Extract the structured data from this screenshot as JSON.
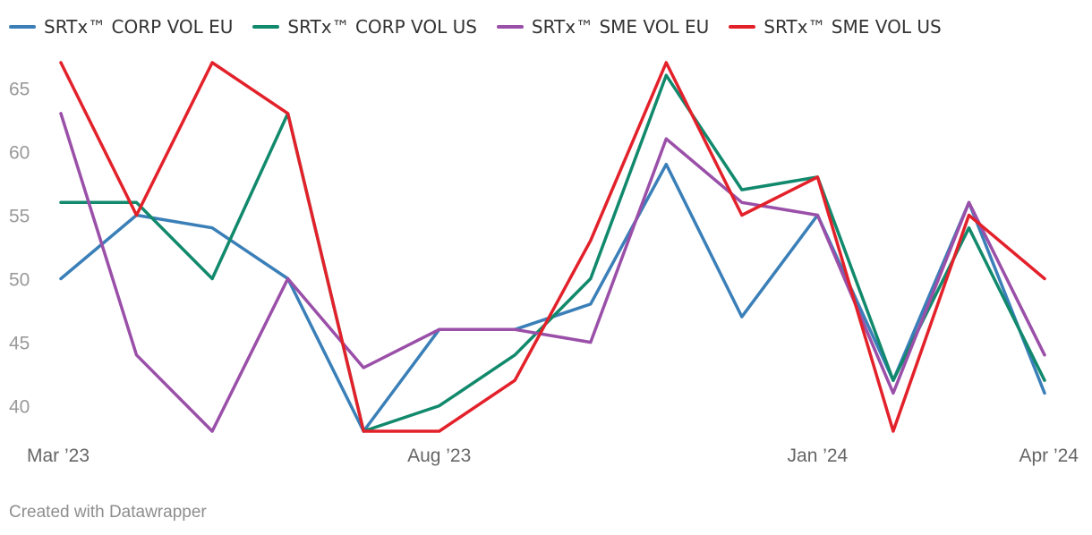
{
  "chart_data": {
    "type": "line",
    "title": "",
    "xlabel": "",
    "ylabel": "",
    "x": [
      "Mar 2023",
      "Apr 2023",
      "May 2023",
      "Jun 2023",
      "Jul 2023",
      "Aug 2023",
      "Sep 2023",
      "Oct 2023",
      "Nov 2023",
      "Dec 2023",
      "Jan 2024",
      "Feb 2024",
      "Mar 2024",
      "Apr 2024"
    ],
    "x_tick_labels": [
      {
        "at": "Mar 2023",
        "label": "Mar ’23"
      },
      {
        "at": "Aug 2023",
        "label": "Aug ’23"
      },
      {
        "at": "Jan 2024",
        "label": "Jan ’24"
      },
      {
        "at": "Apr 2024",
        "label": "Apr ’24"
      }
    ],
    "y_ticks": [
      "40",
      "45",
      "50",
      "55",
      "60",
      "65"
    ],
    "ylim": [
      38,
      67
    ],
    "grid": false,
    "legend_position": "top-left",
    "series": [
      {
        "name": "SRTx™ CORP VOL EU",
        "color": "#3a7fb8",
        "values": [
          50,
          55,
          54,
          50,
          38,
          46,
          46,
          48,
          59,
          47,
          55,
          42,
          56,
          41
        ]
      },
      {
        "name": "SRTx™ CORP VOL US",
        "color": "#11896c",
        "values": [
          56,
          56,
          50,
          63,
          38,
          40,
          44,
          50,
          66,
          57,
          58,
          42,
          54,
          42
        ]
      },
      {
        "name": "SRTx™ SME VOL EU",
        "color": "#9a4fa8",
        "values": [
          63,
          44,
          38,
          50,
          43,
          46,
          46,
          45,
          61,
          56,
          55,
          41,
          56,
          44
        ]
      },
      {
        "name": "SRTx™ SME VOL US",
        "color": "#e3212a",
        "values": [
          67,
          55,
          67,
          63,
          38,
          38,
          42,
          53,
          67,
          55,
          58,
          38,
          55,
          50
        ]
      }
    ]
  },
  "footer": {
    "credit": "Created with Datawrapper"
  }
}
